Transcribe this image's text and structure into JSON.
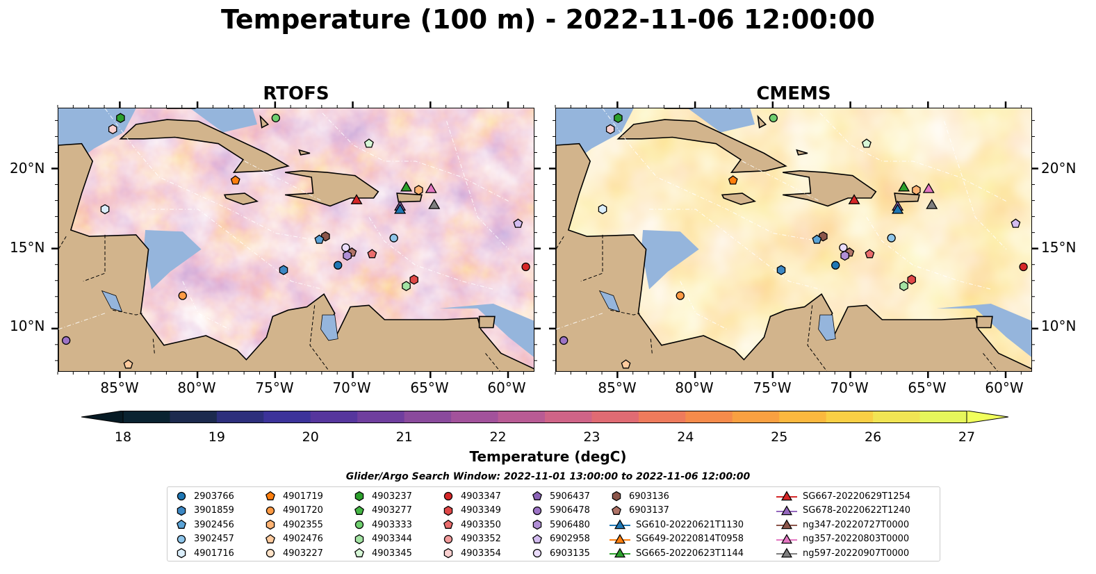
{
  "figure": {
    "title": "Temperature (100 m) - 2022-11-06 12:00:00"
  },
  "panels": [
    {
      "title": "RTOFS",
      "style": "rtofs"
    },
    {
      "title": "CMEMS",
      "style": "cmems"
    }
  ],
  "axes": {
    "x_ticks": [
      "85°W",
      "80°W",
      "75°W",
      "70°W",
      "65°W",
      "60°W"
    ],
    "y_ticks": [
      "20°N",
      "15°N",
      "10°N"
    ],
    "lon_range": [
      -89,
      -58.3
    ],
    "lat_range": [
      7.3,
      23.8
    ]
  },
  "colorbar": {
    "label": "Temperature (degC)",
    "ticks": [
      "18",
      "19",
      "20",
      "21",
      "22",
      "23",
      "24",
      "25",
      "26",
      "27"
    ],
    "range": [
      18,
      27
    ],
    "extend": "both",
    "colors": [
      "#0a2331",
      "#1c2a4e",
      "#2d2f7c",
      "#3c339a",
      "#56369d",
      "#6f3e9e",
      "#8a4a9c",
      "#a2529b",
      "#b95b94",
      "#cf6487",
      "#e06b73",
      "#ee7b5c",
      "#f58b4b",
      "#f9a041",
      "#fbb83e",
      "#f9cf45",
      "#f1e454",
      "#e6f65b"
    ]
  },
  "search_window": "Glider/Argo Search Window: 2022-11-01 13:00:00 to 2022-11-06 12:00:00",
  "legend": {
    "columns": [
      [
        {
          "label": "2903766",
          "marker": "circle",
          "color": "#1f77b4"
        },
        {
          "label": "3901859",
          "marker": "hexagon",
          "color": "#3d88c4"
        },
        {
          "label": "3902456",
          "marker": "pentagon",
          "color": "#5ba3d6"
        },
        {
          "label": "3902457",
          "marker": "circle",
          "color": "#8ec5ea"
        },
        {
          "label": "4901716",
          "marker": "hexagon",
          "color": "#dbeefb"
        }
      ],
      [
        {
          "label": "4901719",
          "marker": "pentagon",
          "color": "#ff7f0e"
        },
        {
          "label": "4901720",
          "marker": "circle",
          "color": "#ff9b45"
        },
        {
          "label": "4902355",
          "marker": "hexagon",
          "color": "#ffb474"
        },
        {
          "label": "4902476",
          "marker": "pentagon",
          "color": "#ffcb9e"
        },
        {
          "label": "4903227",
          "marker": "circle",
          "color": "#ffe3c8"
        }
      ],
      [
        {
          "label": "4903237",
          "marker": "hexagon",
          "color": "#2ca02c"
        },
        {
          "label": "4903277",
          "marker": "pentagon",
          "color": "#45b645"
        },
        {
          "label": "4903333",
          "marker": "circle",
          "color": "#6fcf6f"
        },
        {
          "label": "4903344",
          "marker": "hexagon",
          "color": "#a3e3a3"
        },
        {
          "label": "4903345",
          "marker": "pentagon",
          "color": "#d7f7d7"
        }
      ],
      [
        {
          "label": "4903347",
          "marker": "circle",
          "color": "#d62728"
        },
        {
          "label": "4903349",
          "marker": "hexagon",
          "color": "#e04848"
        },
        {
          "label": "4903350",
          "marker": "pentagon",
          "color": "#ea6d6d"
        },
        {
          "label": "4903352",
          "marker": "circle",
          "color": "#f29b9b"
        },
        {
          "label": "4903354",
          "marker": "hexagon",
          "color": "#fad0d0"
        }
      ],
      [
        {
          "label": "5906437",
          "marker": "pentagon",
          "color": "#8c64b8"
        },
        {
          "label": "5906478",
          "marker": "circle",
          "color": "#9d74c6"
        },
        {
          "label": "5906480",
          "marker": "hexagon",
          "color": "#b18fd6"
        },
        {
          "label": "6902958",
          "marker": "pentagon",
          "color": "#d3bcf0"
        },
        {
          "label": "6903135",
          "marker": "circle",
          "color": "#eadcfb"
        }
      ],
      [
        {
          "label": "6903136",
          "marker": "hexagon",
          "color": "#8c564b"
        },
        {
          "label": "6903137",
          "marker": "pentagon",
          "color": "#b07468"
        },
        {
          "label": "SG610-20220621T1130",
          "marker": "triangle-line",
          "color": "#1f77b4"
        },
        {
          "label": "SG649-20220814T0958",
          "marker": "triangle-line",
          "color": "#ff7f0e"
        },
        {
          "label": "SG665-20220623T1144",
          "marker": "triangle-line",
          "color": "#2ca02c"
        }
      ],
      [
        {
          "label": "SG667-20220629T1254",
          "marker": "triangle-line",
          "color": "#d62728"
        },
        {
          "label": "SG678-20220622T1240",
          "marker": "triangle-line",
          "color": "#9467bd"
        },
        {
          "label": "ng347-20220727T0000",
          "marker": "triangle-line",
          "color": "#8c564b"
        },
        {
          "label": "ng357-20220803T0000",
          "marker": "triangle-line",
          "color": "#e377c2"
        },
        {
          "label": "ng597-20220907T0000",
          "marker": "triangle-line",
          "color": "#7f7f7f"
        }
      ]
    ]
  },
  "platforms": [
    {
      "id": "4903237",
      "lon": -85.0,
      "lat": 23.2
    },
    {
      "id": "4903333",
      "lon": -75.0,
      "lat": 23.2
    },
    {
      "id": "4903354",
      "lon": -85.5,
      "lat": 22.5
    },
    {
      "id": "4903345",
      "lon": -69.0,
      "lat": 21.6
    },
    {
      "id": "4901719",
      "lon": -77.6,
      "lat": 19.3
    },
    {
      "id": "SG665-20220623T1144",
      "lon": -66.6,
      "lat": 18.9
    },
    {
      "id": "4902355",
      "lon": -65.8,
      "lat": 18.7
    },
    {
      "id": "ng357-20220803T0000",
      "lon": -65.0,
      "lat": 18.8
    },
    {
      "id": "SG667-20220629T1254",
      "lon": -69.8,
      "lat": 18.1
    },
    {
      "id": "SG678-20220622T1240",
      "lon": -67.0,
      "lat": 17.7
    },
    {
      "id": "SG610-20220621T1130",
      "lon": -67.0,
      "lat": 17.5
    },
    {
      "id": "ng597-20220907T0000",
      "lon": -64.8,
      "lat": 17.8
    },
    {
      "id": "4901716",
      "lon": -86.0,
      "lat": 17.5
    },
    {
      "id": "6902958",
      "lon": -59.4,
      "lat": 16.6
    },
    {
      "id": "6903136",
      "lon": -71.8,
      "lat": 15.8
    },
    {
      "id": "3902456",
      "lon": -72.2,
      "lat": 15.6
    },
    {
      "id": "3902457",
      "lon": -67.4,
      "lat": 15.7
    },
    {
      "id": "6903135",
      "lon": -70.5,
      "lat": 15.1
    },
    {
      "id": "6903137",
      "lon": -70.1,
      "lat": 14.8
    },
    {
      "id": "5906480",
      "lon": -70.4,
      "lat": 14.6
    },
    {
      "id": "4903350",
      "lon": -68.8,
      "lat": 14.7
    },
    {
      "id": "2903766",
      "lon": -71.0,
      "lat": 14.0
    },
    {
      "id": "3901859",
      "lon": -74.5,
      "lat": 13.7
    },
    {
      "id": "4903347",
      "lon": -58.9,
      "lat": 13.9
    },
    {
      "id": "4903349",
      "lon": -66.1,
      "lat": 13.1
    },
    {
      "id": "4903344",
      "lon": -66.6,
      "lat": 12.7
    },
    {
      "id": "4901720",
      "lon": -81.0,
      "lat": 12.1
    },
    {
      "id": "5906478",
      "lon": -88.5,
      "lat": 9.3
    },
    {
      "id": "4902476",
      "lon": -84.5,
      "lat": 7.8
    }
  ]
}
